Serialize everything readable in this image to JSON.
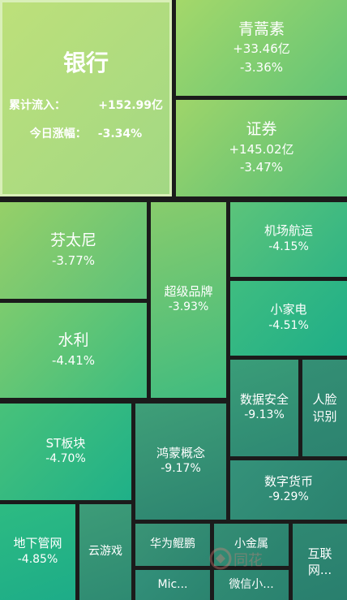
{
  "featured": {
    "name": "银行",
    "inflow_label": "累计流入：",
    "inflow_value": "+152.99亿",
    "change_label": "今日涨幅：",
    "change_value": "-3.34%"
  },
  "tiles": {
    "qinghaosu": {
      "name": "青蒿素",
      "flow": "+33.46亿",
      "change": "-3.36%"
    },
    "zhengquan": {
      "name": "证券",
      "flow": "+145.02亿",
      "change": "-3.47%"
    },
    "fentanyl": {
      "name": "芬太尼",
      "change": "-3.77%"
    },
    "chaoji": {
      "name": "超级品牌",
      "change": "-3.93%"
    },
    "jichang": {
      "name": "机场航运",
      "change": "-4.15%"
    },
    "xiaojiadian": {
      "name": "小家电",
      "change": "-4.51%"
    },
    "shuili": {
      "name": "水利",
      "change": "-4.41%"
    },
    "shuju": {
      "name": "数据安全",
      "change": "-9.13%"
    },
    "renlian": {
      "name": "人脸识别"
    },
    "st": {
      "name": "ST板块",
      "change": "-4.70%"
    },
    "hongmeng": {
      "name": "鸿蒙概念",
      "change": "-9.17%"
    },
    "shuzi": {
      "name": "数字货币",
      "change": "-9.29%"
    },
    "dixia": {
      "name": "地下管网",
      "change": "-4.85%"
    },
    "yunyouxi": {
      "name": "云游戏"
    },
    "huawei": {
      "name": "华为鲲鹏"
    },
    "xiaojinshu": {
      "name": "小金属"
    },
    "hulian": {
      "name": "互联网..."
    },
    "mic": {
      "name": "Mic..."
    },
    "weixin": {
      "name": "微信小..."
    }
  },
  "watermark": {
    "text": "同花"
  },
  "colors": {
    "background": "#1b1b1b",
    "light_green": "#a8d870",
    "green": "#4ec27a",
    "teal": "#2f8c72"
  }
}
